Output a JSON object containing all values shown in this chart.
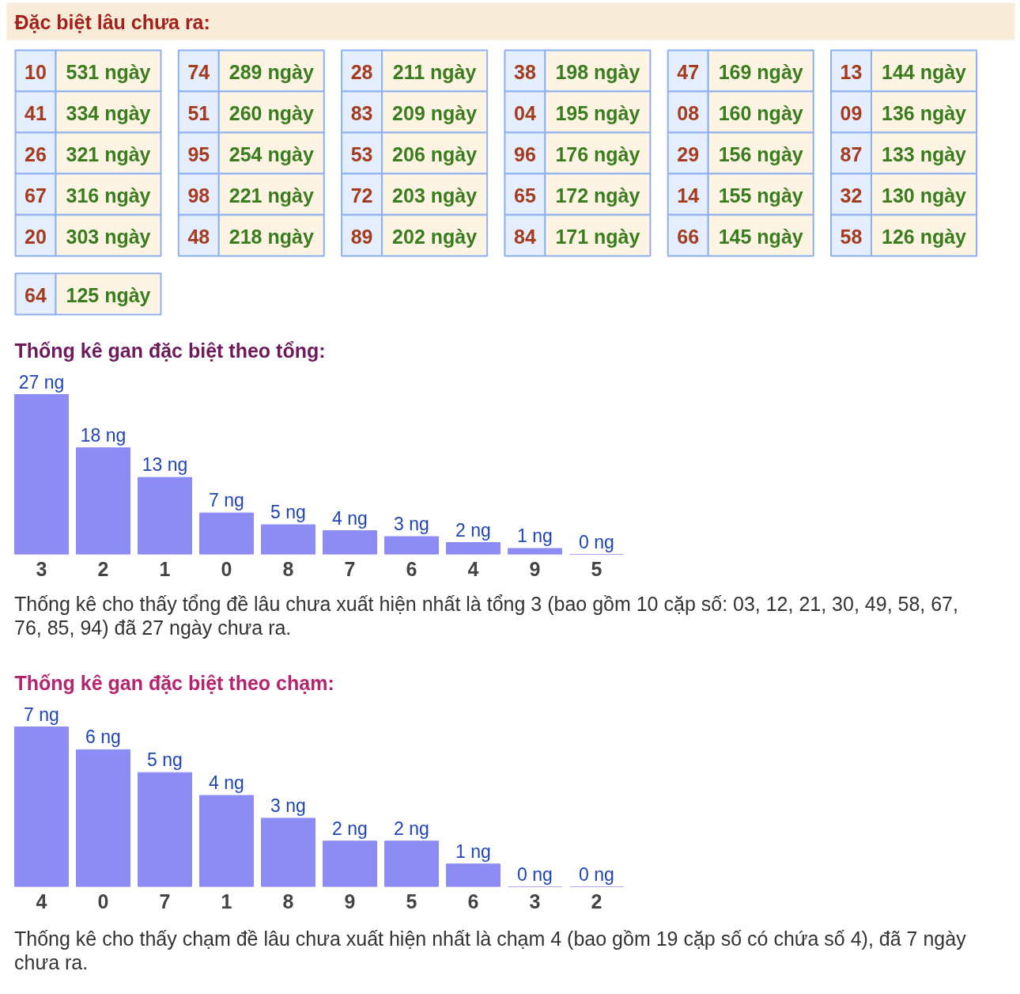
{
  "chart_data": [
    {
      "type": "other",
      "title": "Đặc biệt lâu chưa ra:",
      "categories": [
        "10",
        "41",
        "26",
        "67",
        "20",
        "74",
        "51",
        "95",
        "98",
        "48",
        "28",
        "83",
        "53",
        "72",
        "89",
        "38",
        "04",
        "96",
        "65",
        "84",
        "47",
        "08",
        "29",
        "14",
        "66",
        "13",
        "09",
        "87",
        "32",
        "58",
        "64"
      ],
      "values": [
        531,
        334,
        321,
        316,
        303,
        289,
        260,
        254,
        221,
        218,
        211,
        209,
        206,
        203,
        202,
        198,
        195,
        176,
        172,
        171,
        169,
        160,
        156,
        155,
        145,
        144,
        136,
        133,
        130,
        126,
        125
      ],
      "value_labels": [
        "531 ngày",
        "334 ngày",
        "321 ngày",
        "316 ngày",
        "303 ngày",
        "289 ngày",
        "260 ngày",
        "254 ngày",
        "221 ngày",
        "218 ngày",
        "211 ngày",
        "209 ngày",
        "206 ngày",
        "203 ngày",
        "202 ngày",
        "198 ngày",
        "195 ngày",
        "176 ngày",
        "172 ngày",
        "171 ngày",
        "169 ngày",
        "160 ngày",
        "156 ngày",
        "155 ngày",
        "145 ngày",
        "144 ngày",
        "136 ngày",
        "133 ngày",
        "130 ngày",
        "126 ngày",
        "125 ngày"
      ]
    },
    {
      "type": "bar",
      "title": "Thống kê gan đặc biệt theo tổng:",
      "categories": [
        "3",
        "2",
        "1",
        "0",
        "8",
        "7",
        "6",
        "4",
        "9",
        "5"
      ],
      "values": [
        27,
        18,
        13,
        7,
        5,
        4,
        3,
        2,
        1,
        0
      ],
      "value_labels": [
        "27 ng",
        "18 ng",
        "13 ng",
        "7 ng",
        "5 ng",
        "4 ng",
        "3 ng",
        "2 ng",
        "1 ng",
        "0 ng"
      ],
      "color": "#8c8cf4",
      "annotations": [
        "Thống kê cho thấy tổng đề lâu chưa xuất hiện nhất là tổng 3 (bao gồm 10 cặp số: 03, 12, 21, 30, 49, 58, 67, 76, 85, 94) đã 27 ngày chưa ra."
      ]
    },
    {
      "type": "bar",
      "title": "Thống kê gan đặc biệt theo chạm:",
      "categories": [
        "4",
        "0",
        "7",
        "1",
        "8",
        "9",
        "5",
        "6",
        "3",
        "2"
      ],
      "values": [
        7,
        6,
        5,
        4,
        3,
        2,
        2,
        1,
        0,
        0
      ],
      "value_labels": [
        "7 ng",
        "6 ng",
        "5 ng",
        "4 ng",
        "3 ng",
        "2 ng",
        "2 ng",
        "1 ng",
        "0 ng",
        "0 ng"
      ],
      "color": "#8c8cf4",
      "annotations": [
        "Thống kê cho thấy chạm đề lâu chưa xuất hiện nhất là chạm 4 (bao gồm 19 cặp số có chứa số 4), đã 7 ngày chưa ra."
      ]
    }
  ]
}
